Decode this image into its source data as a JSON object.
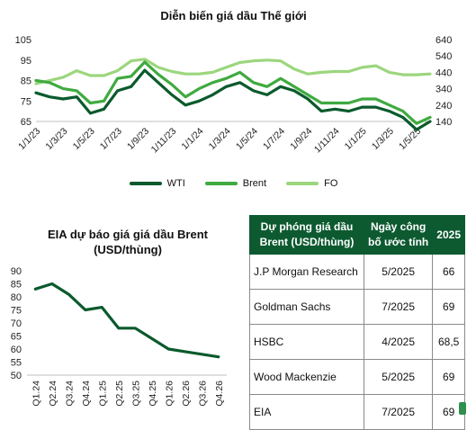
{
  "chart_data": [
    {
      "type": "line",
      "title": "Diễn biến giá dầu Thế giới",
      "x": [
        "1/1/23",
        "1/2/23",
        "1/3/23",
        "1/4/23",
        "1/5/23",
        "1/6/23",
        "1/7/23",
        "1/8/23",
        "1/9/23",
        "1/10/23",
        "1/11/23",
        "1/12/23",
        "1/1/24",
        "1/2/24",
        "1/3/24",
        "1/4/24",
        "1/5/24",
        "1/6/24",
        "1/7/24",
        "1/8/24",
        "1/9/24",
        "1/10/24",
        "1/11/24",
        "1/12/24",
        "1/1/25",
        "1/2/25",
        "1/3/25",
        "1/4/25",
        "1/5/25",
        "1/6/25"
      ],
      "xtick_labels": [
        "1/1/23",
        "1/3/23",
        "1/5/23",
        "1/7/23",
        "1/9/23",
        "1/11/23",
        "1/1/24",
        "1/3/24",
        "1/5/24",
        "1/7/24",
        "1/9/24",
        "1/11/24",
        "1/1/25",
        "1/3/25",
        "1/5/25"
      ],
      "ylim_left": [
        65,
        105
      ],
      "yticks_left": [
        65,
        75,
        85,
        95,
        105
      ],
      "ylim_right": [
        140,
        640
      ],
      "yticks_right": [
        140,
        240,
        340,
        440,
        540,
        640
      ],
      "series": [
        {
          "name": "WTI",
          "axis": "left",
          "color": "#0b5a2c",
          "values": [
            79,
            77,
            76,
            77,
            69,
            71,
            80,
            82,
            90,
            84,
            78,
            73,
            75,
            78,
            82,
            84,
            80,
            78,
            82,
            80,
            76,
            70,
            71,
            70,
            72,
            72,
            70,
            67,
            61,
            65
          ]
        },
        {
          "name": "Brent",
          "axis": "left",
          "color": "#3faa3f",
          "values": [
            85,
            84,
            81,
            80,
            74,
            75,
            86,
            87,
            94,
            88,
            83,
            77,
            81,
            84,
            86,
            89,
            84,
            82,
            86,
            82,
            78,
            74,
            74,
            74,
            76,
            76,
            73,
            70,
            64,
            67
          ]
        },
        {
          "name": "FO",
          "axis": "right",
          "color": "#9cd67d",
          "values": [
            370,
            390,
            410,
            450,
            420,
            420,
            450,
            510,
            520,
            470,
            445,
            430,
            430,
            440,
            470,
            500,
            510,
            515,
            510,
            460,
            430,
            440,
            445,
            445,
            470,
            480,
            440,
            425,
            425,
            430
          ]
        }
      ]
    },
    {
      "type": "line",
      "title": "EIA dự báo giá giá dầu Brent (USD/thùng)",
      "categories": [
        "Q1.24",
        "Q2.24",
        "Q3.24",
        "Q4.24",
        "Q1.25",
        "Q2.25",
        "Q3.25",
        "Q4.25",
        "Q1.26",
        "Q2.26",
        "Q3.26",
        "Q4.26"
      ],
      "ylim": [
        50,
        90
      ],
      "yticks": [
        50,
        55,
        60,
        65,
        70,
        75,
        80,
        85,
        90
      ],
      "series": [
        {
          "name": "",
          "color": "#0b5a2c",
          "values": [
            83,
            85,
            81,
            75,
            76,
            68,
            68,
            64,
            60,
            59,
            58,
            57
          ]
        }
      ]
    }
  ],
  "legend": [
    {
      "label": "WTI",
      "color": "#0b5a2c"
    },
    {
      "label": "Brent",
      "color": "#3faa3f"
    },
    {
      "label": "FO",
      "color": "#9cd67d"
    }
  ],
  "table": {
    "headers": [
      "Dự phóng giá dầu Brent (USD/thùng)",
      "Ngày công bố ước tính",
      "2025"
    ],
    "rows": [
      [
        "J.P Morgan Research",
        "5/2025",
        "66"
      ],
      [
        "Goldman Sachs",
        "7/2025",
        "69"
      ],
      [
        "HSBC",
        "4/2025",
        "68,5"
      ],
      [
        "Wood Mackenzie",
        "5/2025",
        "69"
      ],
      [
        "EIA",
        "7/2025",
        "69"
      ]
    ]
  }
}
